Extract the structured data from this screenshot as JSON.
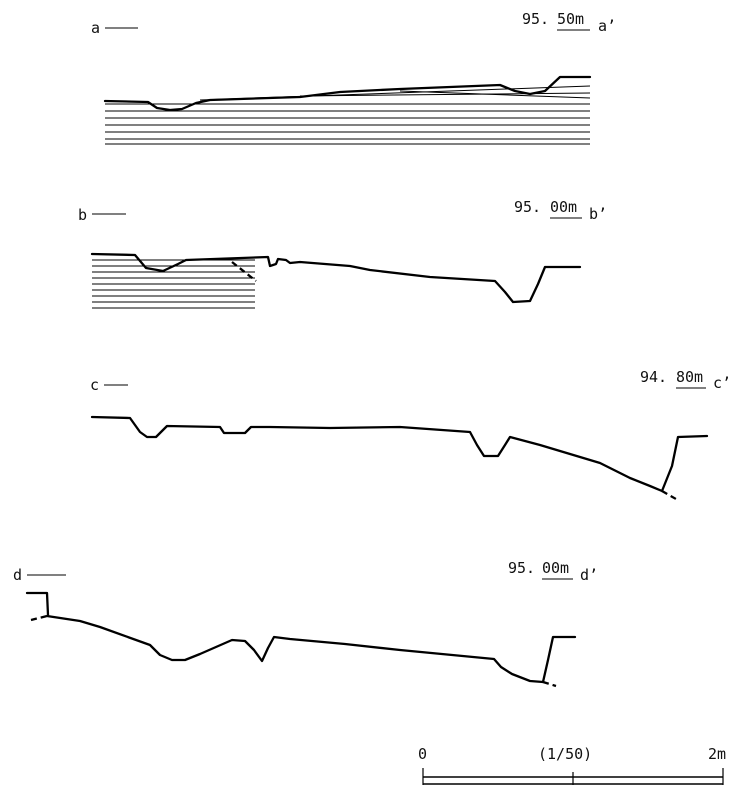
{
  "sections": [
    {
      "id": "a",
      "label_left": "a",
      "elev_int": "95.",
      "elev_dec": "50m",
      "label_right": "a’"
    },
    {
      "id": "b",
      "label_left": "b",
      "elev_int": "95.",
      "elev_dec": "00m",
      "label_right": "b’"
    },
    {
      "id": "c",
      "label_left": "c",
      "elev_int": "94.",
      "elev_dec": "80m",
      "label_right": "c’"
    },
    {
      "id": "d",
      "label_left": "d",
      "elev_int": "95.",
      "elev_dec": "00m",
      "label_right": "d’"
    }
  ],
  "scale_bar": {
    "start_label": "0",
    "ratio_label": "(1/50)",
    "end_label": "2m"
  }
}
